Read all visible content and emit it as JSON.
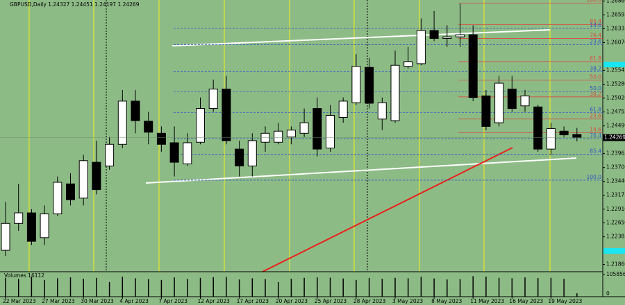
{
  "chart_data": {
    "type": "candlestick",
    "title": "GBPUSD,Daily  1.24327 1.24451 1.24197 1.24269",
    "categories": [
      "22 Mar 2023",
      null,
      null,
      "27 Mar 2023",
      null,
      null,
      "30 Mar 2023",
      null,
      null,
      "4 Apr 2023",
      null,
      null,
      "7 Apr 2023",
      null,
      null,
      "12 Apr 2023",
      null,
      null,
      "17 Apr 2023",
      null,
      null,
      "20 Apr 2023",
      null,
      null,
      "25 Apr 2023",
      null,
      null,
      "28 Apr 2023",
      null,
      null,
      "3 May 2023",
      null,
      null,
      "8 May 2023",
      null,
      null,
      "11 May 2023",
      null,
      null,
      "16 May 2023",
      null,
      null,
      "19 May 2023",
      null,
      null
    ],
    "open": [
      1.2213,
      1.2264,
      1.2284,
      1.2237,
      1.2282,
      1.2339,
      1.2312,
      1.238,
      1.2373,
      1.2414,
      1.2496,
      1.2458,
      1.2435,
      1.2417,
      1.2377,
      1.2418,
      1.2482,
      1.2519,
      1.2405,
      1.2373,
      1.2418,
      1.2418,
      1.2428,
      1.2435,
      1.2482,
      1.2407,
      1.2465,
      1.2493,
      1.256,
      1.2462,
      1.2459,
      1.2562,
      1.2567,
      1.263,
      1.2615,
      1.2618,
      1.2622,
      1.2506,
      1.2455,
      1.2519,
      1.2487,
      1.2485,
      1.2405,
      1.2439,
      1.24327
    ],
    "high": [
      1.2305,
      1.2339,
      1.2291,
      1.2298,
      1.2353,
      1.2359,
      1.2394,
      1.2421,
      1.2428,
      1.2517,
      1.2517,
      1.2476,
      1.2448,
      1.2448,
      1.2435,
      1.2503,
      1.2537,
      1.2544,
      1.2421,
      1.2435,
      1.2448,
      1.2455,
      1.2448,
      1.2482,
      1.2503,
      1.2489,
      1.2503,
      1.2585,
      1.2578,
      1.2503,
      1.2592,
      1.2599,
      1.2653,
      1.2667,
      1.264,
      1.2681,
      1.264,
      1.2517,
      1.2544,
      1.2544,
      1.2517,
      1.2489,
      1.2455,
      1.2448,
      1.24451
    ],
    "low": [
      1.2202,
      1.225,
      1.2223,
      1.2223,
      1.2278,
      1.2298,
      1.2298,
      1.2319,
      1.2366,
      1.2407,
      1.2435,
      1.2414,
      1.24,
      1.2353,
      1.2373,
      1.2414,
      1.2476,
      1.2414,
      1.2353,
      1.2353,
      1.24,
      1.2414,
      1.2414,
      1.2428,
      1.2391,
      1.24,
      1.2455,
      1.2489,
      1.2482,
      1.2441,
      1.2455,
      1.2558,
      1.2564,
      1.261,
      1.2599,
      1.2599,
      1.2496,
      1.2441,
      1.2448,
      1.2476,
      1.2476,
      1.24,
      1.2394,
      1.2428,
      1.24197
    ],
    "close": [
      1.2264,
      1.2284,
      1.223,
      1.2282,
      1.2342,
      1.2309,
      1.2383,
      1.2328,
      1.2414,
      1.2496,
      1.2459,
      1.2437,
      1.2414,
      1.238,
      1.2417,
      1.2482,
      1.2519,
      1.2421,
      1.2373,
      1.2421,
      1.2435,
      1.2439,
      1.2441,
      1.2455,
      1.2405,
      1.2469,
      1.2496,
      1.2562,
      1.2492,
      1.2493,
      1.2564,
      1.2571,
      1.263,
      1.2615,
      1.2618,
      1.2622,
      1.2503,
      1.2448,
      1.253,
      1.2482,
      1.2506,
      1.2405,
      1.2444,
      1.2432,
      1.24269
    ],
    "ylim": [
      1.21723,
      1.26879
    ],
    "yticks": [
      {
        "value": 1.2686,
        "label": "1.26860"
      },
      1.26595,
      1.26335,
      {
        "value": 1.2607,
        "label": "1.26070"
      },
      1.25545,
      {
        "value": 1.2528,
        "label": "1.25280"
      },
      {
        "value": 1.2502,
        "label": "1.25020"
      },
      1.24755,
      {
        "value": 1.2449,
        "label": "1.24490"
      },
      1.23965,
      {
        "value": 1.237,
        "label": "1.23700"
      },
      {
        "value": 1.2344,
        "label": "1.23440"
      },
      1.23175,
      {
        "value": 1.2291,
        "label": "1.22910"
      },
      {
        "value": 1.2265,
        "label": "1.22650"
      },
      1.22385,
      {
        "value": 1.2186,
        "label": "1.21860"
      }
    ],
    "fib_levels": [
      {
        "label": "100.0",
        "value": 1.2682,
        "color": "#d9473b"
      },
      {
        "label": "85.4",
        "value": 1.2641,
        "color": "#d9473b"
      },
      {
        "label": "76.4",
        "value": 1.2615,
        "color": "#d9473b"
      },
      {
        "label": "61.8",
        "value": 1.2571,
        "color": "#d9473b"
      },
      {
        "label": "50.0",
        "value": 1.2536,
        "color": "#d9473b"
      },
      {
        "label": "38.2",
        "value": 1.2504,
        "color": "#d9473b"
      },
      {
        "label": "23.6",
        "value": 1.2462,
        "color": "#d9473b"
      },
      {
        "label": "14.6",
        "value": 1.2436,
        "color": "#d9473b"
      },
      {
        "label": "14.6",
        "value": 1.2634,
        "color": "#2f56c8"
      },
      {
        "label": "23.6",
        "value": 1.2603,
        "color": "#2f56c8"
      },
      {
        "label": "38.2",
        "value": 1.2552,
        "color": "#2f56c8"
      },
      {
        "label": "50.0",
        "value": 1.2514,
        "color": "#2f56c8"
      },
      {
        "label": "61.8",
        "value": 1.2474,
        "color": "#2f56c8"
      },
      {
        "label": "76.4",
        "value": 1.2425,
        "color": "#2f56c8"
      },
      {
        "label": "85.4",
        "value": 1.2395,
        "color": "#2f56c8"
      },
      {
        "label": "100.0",
        "value": 1.2346,
        "color": "#2f56c8"
      }
    ],
    "volume_label": "Volumes 16112",
    "volume": [
      90000,
      85000,
      95000,
      80000,
      88000,
      92000,
      86000,
      90000,
      70000,
      95000,
      88000,
      84000,
      80000,
      92000,
      85000,
      90000,
      93000,
      94000,
      82000,
      88000,
      84000,
      70000,
      86000,
      90000,
      92000,
      91000,
      87000,
      80000,
      89000,
      85000,
      90000,
      88000,
      95000,
      87000,
      82000,
      84000,
      98000,
      96000,
      90000,
      88000,
      92000,
      89000,
      90000,
      85000,
      16112
    ],
    "volume_lim": [
      0,
      105856
    ],
    "volume_ticks": [
      105856,
      0
    ]
  }
}
